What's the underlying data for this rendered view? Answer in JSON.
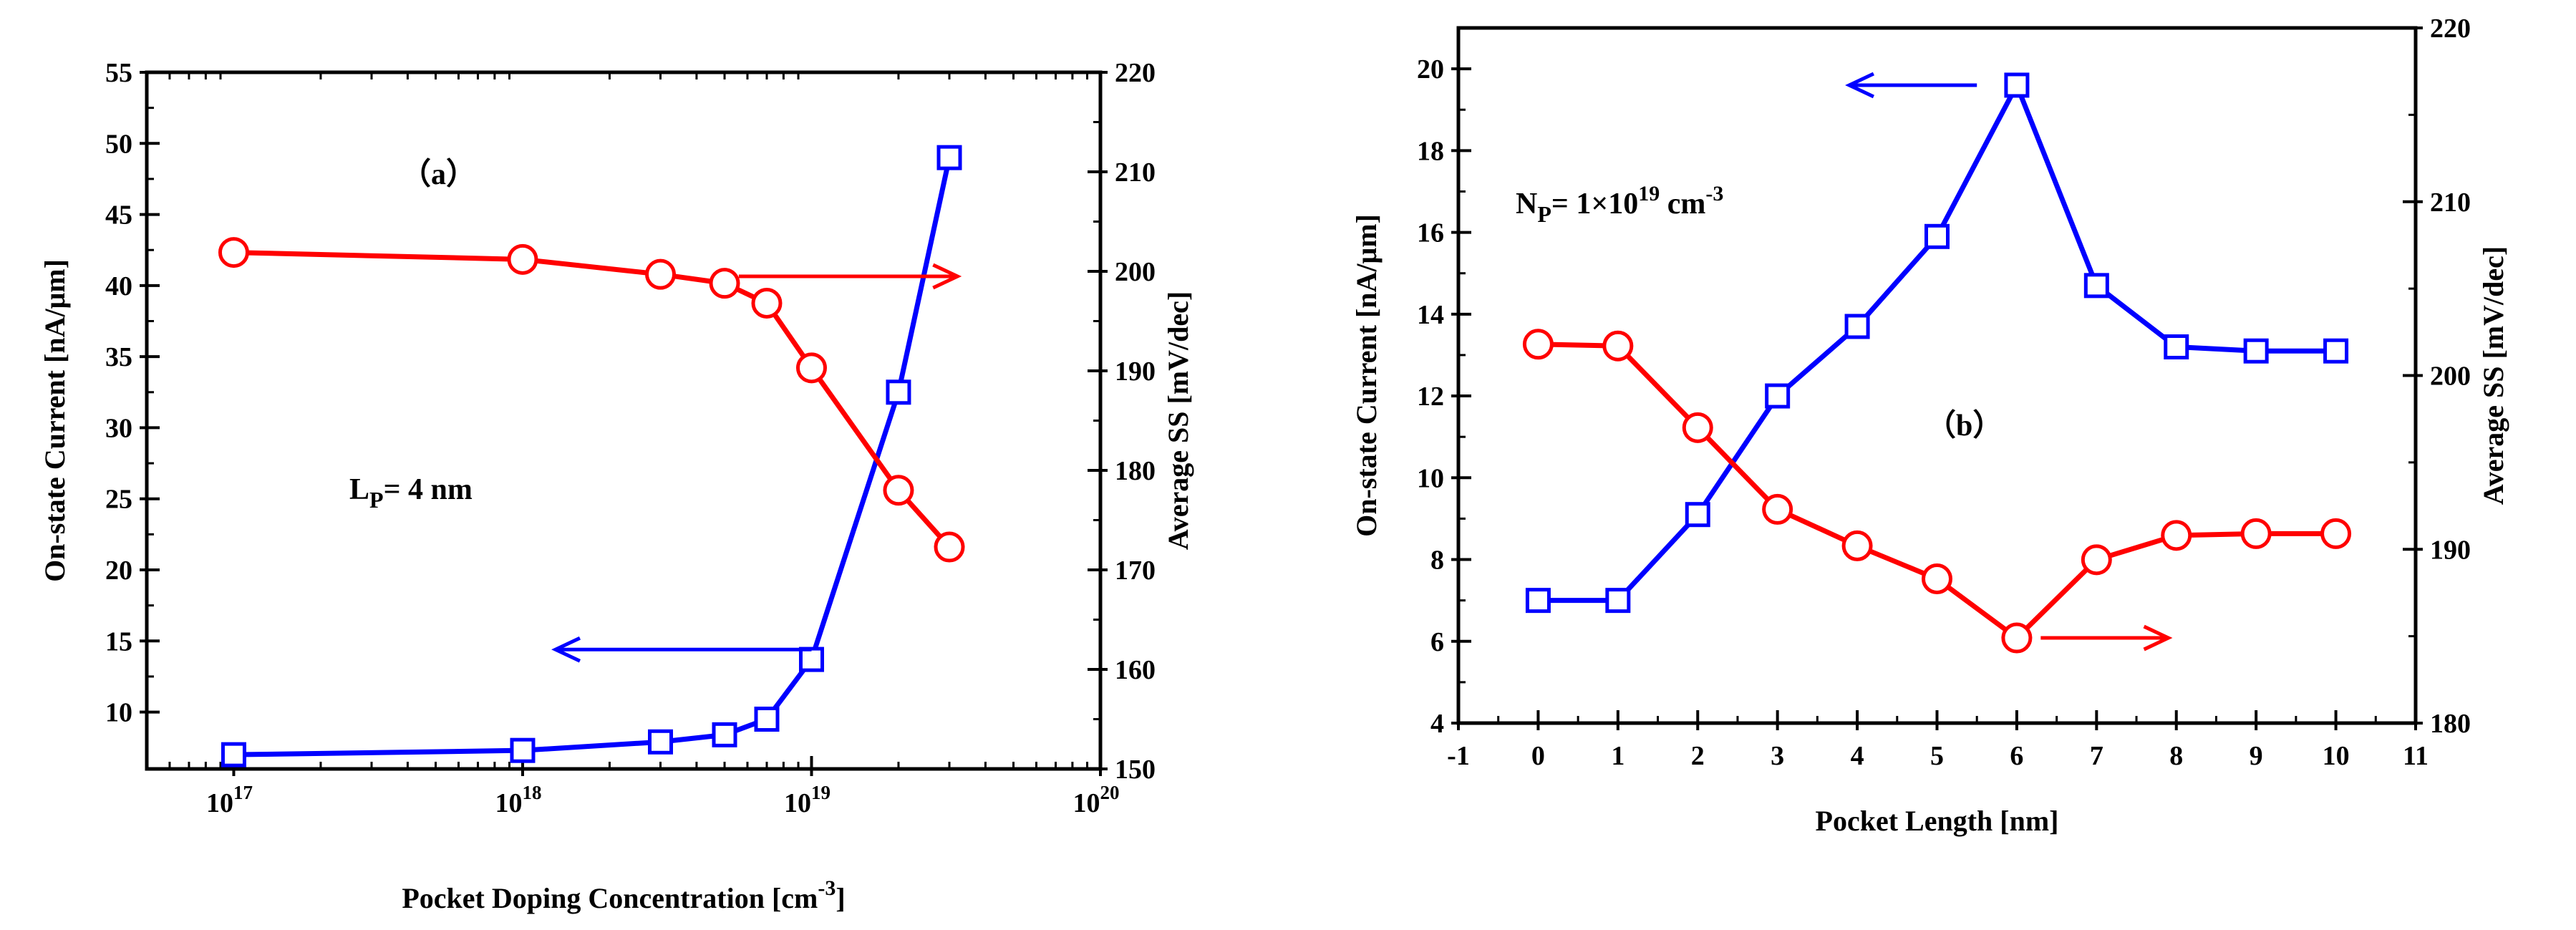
{
  "chart_data": [
    {
      "type": "line",
      "panel_label": "（a）",
      "annotation": "L",
      "annotation_sub": "P",
      "annotation_rest": "= 4 nm",
      "xlabel": "Pocket Doping Concentration",
      "xlabel_unit_open": "[cm",
      "xlabel_unit_exp": "-3",
      "xlabel_unit_close": "]",
      "xscale": "log",
      "xlim": [
        5e+16,
        1e+20
      ],
      "xticks": [
        {
          "value": 1e+17,
          "base": "10",
          "exp": "17"
        },
        {
          "value": 1e+18,
          "base": "10",
          "exp": "18"
        },
        {
          "value": 1e+19,
          "base": "10",
          "exp": "19"
        },
        {
          "value": 1e+20,
          "base": "10",
          "exp": "20"
        }
      ],
      "ylabel_left": "On-state Current [nA/μm]",
      "ylim_left": [
        6,
        55
      ],
      "yticks_left": [
        "10",
        "15",
        "20",
        "25",
        "30",
        "35",
        "40",
        "45",
        "50",
        "55"
      ],
      "ylabel_right": "Average SS [mV/dec]",
      "ylim_right": [
        150,
        220
      ],
      "yticks_right": [
        "150",
        "160",
        "170",
        "180",
        "190",
        "200",
        "210",
        "220"
      ],
      "series": [
        {
          "name": "On-state Current",
          "axis": "left",
          "color": "#0000ff",
          "marker": "square",
          "x": [
            1e+17,
            1e+18,
            3e+18,
            5e+18,
            7e+18,
            1e+19,
            2e+19,
            3e+19
          ],
          "values": [
            7.0,
            7.3,
            7.9,
            8.4,
            9.5,
            13.7,
            32.5,
            49.0
          ]
        },
        {
          "name": "Average SS",
          "axis": "right",
          "color": "#ff0000",
          "marker": "circle",
          "x": [
            1e+17,
            1e+18,
            3e+18,
            5e+18,
            7e+18,
            1e+19,
            2e+19,
            3e+19
          ],
          "values": [
            201.9,
            201.2,
            199.7,
            198.8,
            196.8,
            190.3,
            178.0,
            172.3
          ]
        }
      ],
      "arrows": [
        {
          "direction": "left",
          "color": "#0000ff",
          "x": [
            1e+19,
            1.3e+18
          ],
          "y": 14.4,
          "axis": "left"
        },
        {
          "direction": "right",
          "color": "#ff0000",
          "x": [
            5.6e+18,
            3.2e+19
          ],
          "y": 199.5,
          "axis": "right"
        }
      ]
    },
    {
      "type": "line",
      "panel_label": "（b）",
      "annotation": "N",
      "annotation_sub": "P",
      "annotation_rest": "= 1×10",
      "annotation_sup": "19",
      "annotation_tail": " cm",
      "annotation_tail_sup": "-3",
      "xlabel": "Pocket Length [nm]",
      "xscale": "linear",
      "xlim": [
        -1,
        11
      ],
      "xticks": [
        "-1",
        "0",
        "1",
        "2",
        "3",
        "4",
        "5",
        "6",
        "7",
        "8",
        "9",
        "10",
        "11"
      ],
      "ylabel_left": "On-state Current [nA/μm]",
      "ylim_left": [
        4,
        21
      ],
      "yticks_left": [
        "4",
        "6",
        "8",
        "10",
        "12",
        "14",
        "16",
        "18",
        "20"
      ],
      "ylabel_right": "Average SS [mV/dec]",
      "ylim_right": [
        180,
        220
      ],
      "yticks_right": [
        "180",
        "190",
        "200",
        "210",
        "220"
      ],
      "series": [
        {
          "name": "On-state Current",
          "axis": "left",
          "color": "#0000ff",
          "marker": "square",
          "x": [
            0,
            1,
            2,
            3,
            4,
            5,
            6,
            7,
            8,
            9,
            10
          ],
          "values": [
            7.0,
            7.0,
            9.1,
            12.0,
            13.7,
            15.9,
            19.6,
            14.7,
            13.2,
            13.1,
            13.1
          ]
        },
        {
          "name": "Average SS",
          "axis": "right",
          "color": "#ff0000",
          "marker": "circle",
          "x": [
            0,
            1,
            2,
            3,
            4,
            5,
            6,
            7,
            8,
            9,
            10
          ],
          "values": [
            201.8,
            201.7,
            197.0,
            192.3,
            190.2,
            188.3,
            184.9,
            189.4,
            190.8,
            190.9,
            190.9
          ]
        }
      ],
      "arrows": [
        {
          "direction": "left",
          "color": "#0000ff",
          "x": [
            5.5,
            3.9
          ],
          "y": 19.6,
          "axis": "left"
        },
        {
          "direction": "right",
          "color": "#ff0000",
          "x": [
            6.3,
            7.9
          ],
          "y": 184.9,
          "axis": "right"
        }
      ]
    }
  ]
}
